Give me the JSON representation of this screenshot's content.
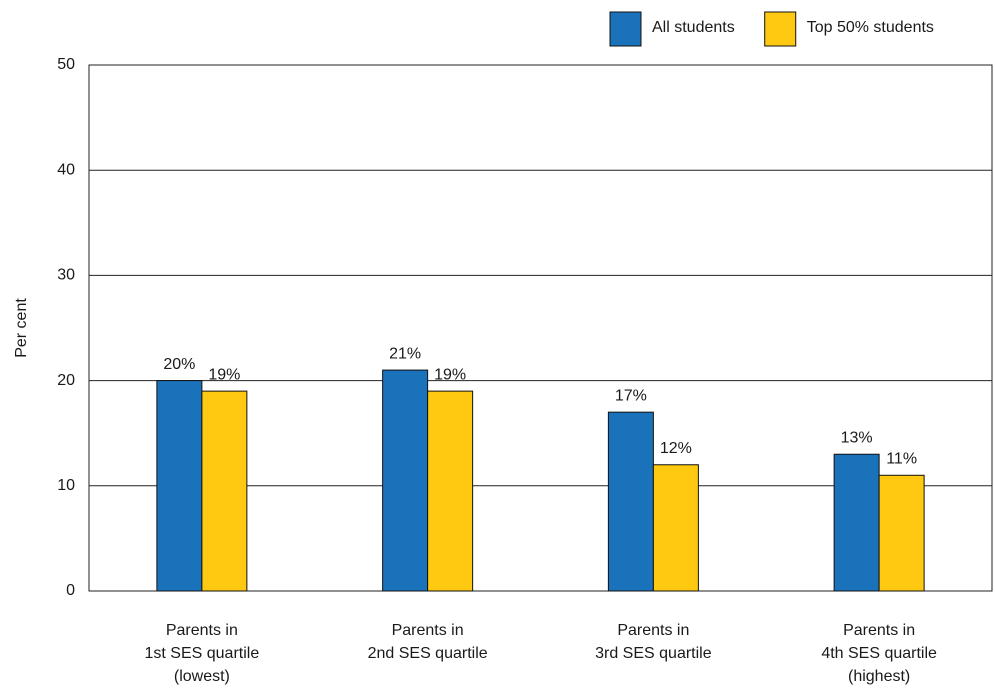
{
  "chart_data": {
    "type": "bar",
    "y_label": "Per cent",
    "categories": [
      [
        "Parents in",
        "1st SES quartile",
        "(lowest)"
      ],
      [
        "Parents in",
        "2nd SES quartile"
      ],
      [
        "Parents in",
        "3rd SES quartile"
      ],
      [
        "Parents in",
        "4th SES quartile",
        "(highest)"
      ]
    ],
    "series": [
      {
        "name": "All students",
        "color": "#1a72bb",
        "values": [
          20,
          21,
          17,
          13
        ],
        "value_labels": [
          "20%",
          "21%",
          "17%",
          "13%"
        ]
      },
      {
        "name": "Top 50% students",
        "color": "#fec910",
        "values": [
          19,
          19,
          12,
          11
        ],
        "value_labels": [
          "19%",
          "19%",
          "12%",
          "11%"
        ]
      }
    ],
    "ylim": [
      0,
      50
    ],
    "yticks": [
      0,
      10,
      20,
      30,
      40,
      50
    ],
    "grid": true,
    "legend": "top-right"
  }
}
